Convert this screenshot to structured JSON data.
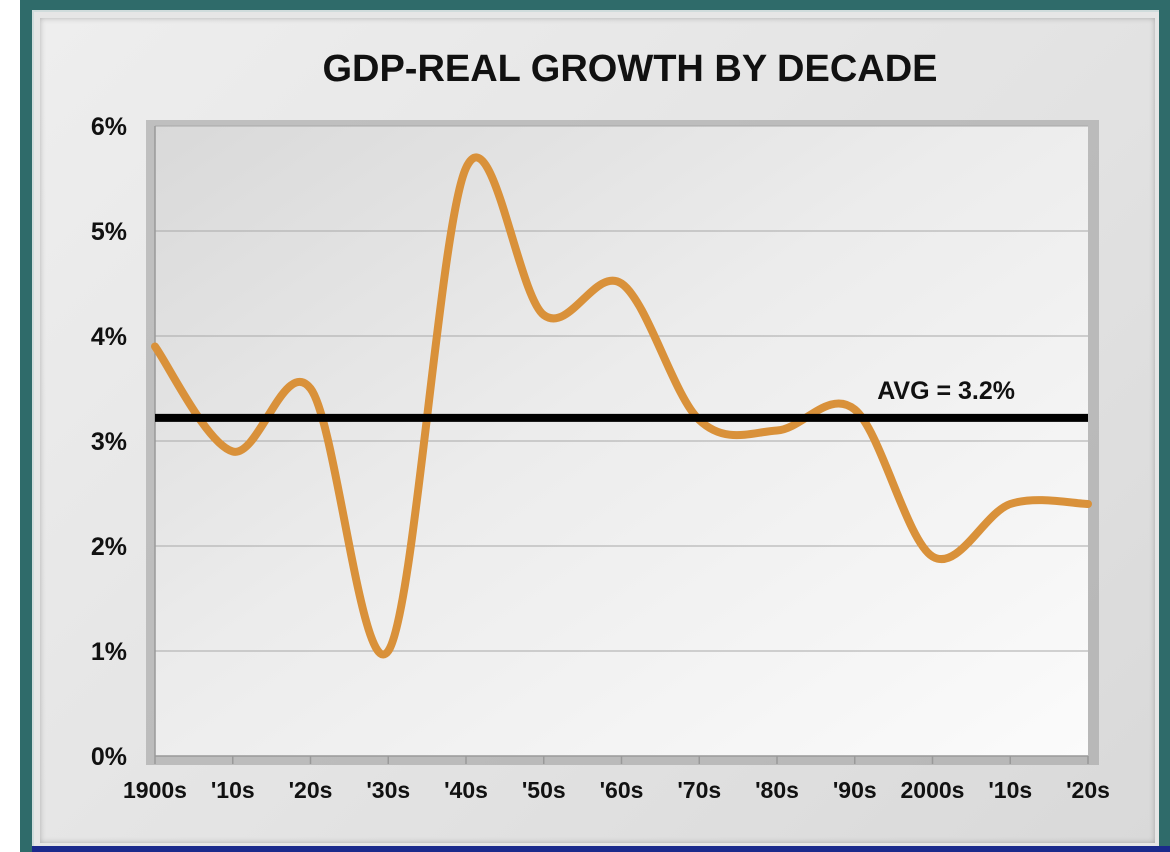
{
  "chart_data": {
    "type": "line",
    "title": "GDP-REAL GROWTH BY DECADE",
    "xlabel": "",
    "ylabel": "",
    "categories": [
      "1900s",
      "'10s",
      "'20s",
      "'30s",
      "'40s",
      "'50s",
      "'60s",
      "'70s",
      "'80s",
      "'90s",
      "2000s",
      "'10s",
      "'20s"
    ],
    "y_ticks": [
      "0%",
      "1%",
      "2%",
      "3%",
      "4%",
      "5%",
      "6%"
    ],
    "ylim": [
      0,
      6
    ],
    "grid": true,
    "series": [
      {
        "color": "#d9913a",
        "x": [
          0,
          1,
          2,
          3,
          4,
          5,
          6,
          7,
          8,
          9,
          10,
          11,
          12
        ],
        "values": [
          3.9,
          2.9,
          3.5,
          1.0,
          5.6,
          4.2,
          4.5,
          3.2,
          3.1,
          3.3,
          1.9,
          2.4,
          2.4
        ]
      }
    ],
    "reference_line": {
      "value": 3.22,
      "label": "AVG = 3.2%",
      "color": "#000000"
    }
  }
}
